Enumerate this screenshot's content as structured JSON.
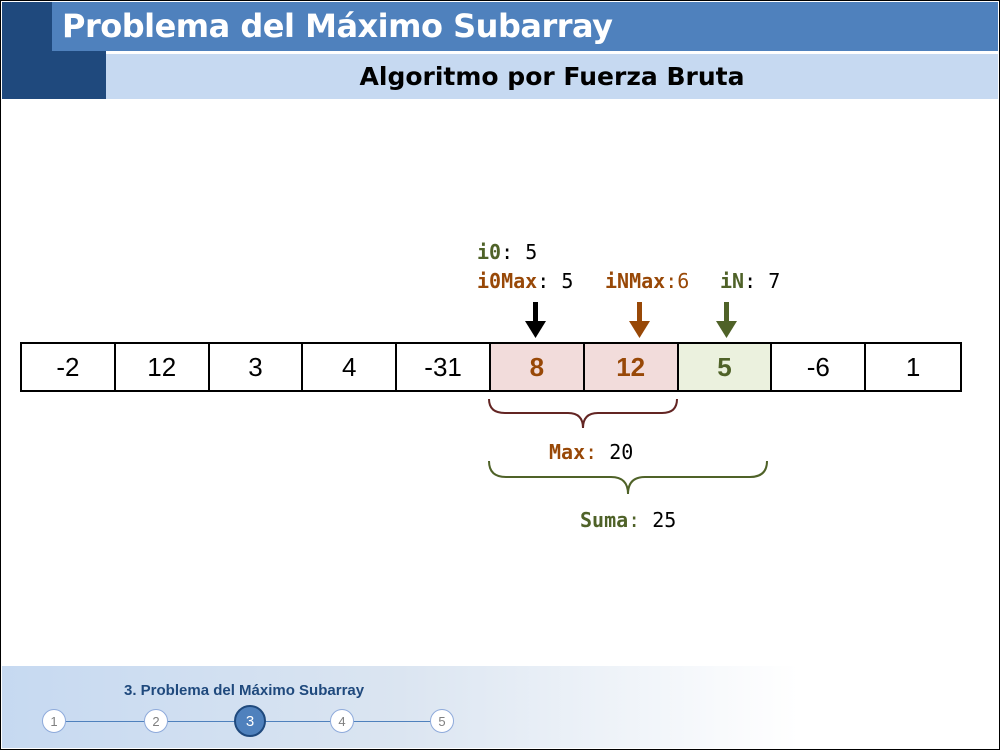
{
  "header": {
    "title": "Problema del Máximo Subarray",
    "subtitle": "Algoritmo por Fuerza Bruta"
  },
  "array": {
    "values": [
      "-2",
      "12",
      "3",
      "4",
      "-31",
      "8",
      "12",
      "5",
      "-6",
      "1"
    ],
    "max_range_indices": [
      5,
      6
    ],
    "sum_range_indices": [
      7
    ]
  },
  "pointers": {
    "i0": {
      "label": "i0",
      "sep": ": ",
      "value": "5"
    },
    "i0Max": {
      "label": "i0Max",
      "sep": ": ",
      "value": "5"
    },
    "iNMax": {
      "label": "iNMax",
      "sep": ":",
      "value": "6"
    },
    "iN": {
      "label": "iN",
      "sep": ": ",
      "value": "7"
    }
  },
  "braces": {
    "max": {
      "label": "Max",
      "sep": ": ",
      "value": "20"
    },
    "suma": {
      "label": "Suma",
      "sep": ": ",
      "value": "25"
    }
  },
  "colors": {
    "title_bar": "#4f81bd",
    "dark_block": "#1f497d",
    "subtitle_bar": "#c6d9f1",
    "max_cell_bg": "#f2dcdb",
    "sum_cell_bg": "#ebf1de",
    "brown": "#984807",
    "green": "#4f6228"
  },
  "footer": {
    "section_title": "3. Problema del Máximo Subarray",
    "steps": [
      "1",
      "2",
      "3",
      "4",
      "5"
    ],
    "active_step": "3"
  }
}
